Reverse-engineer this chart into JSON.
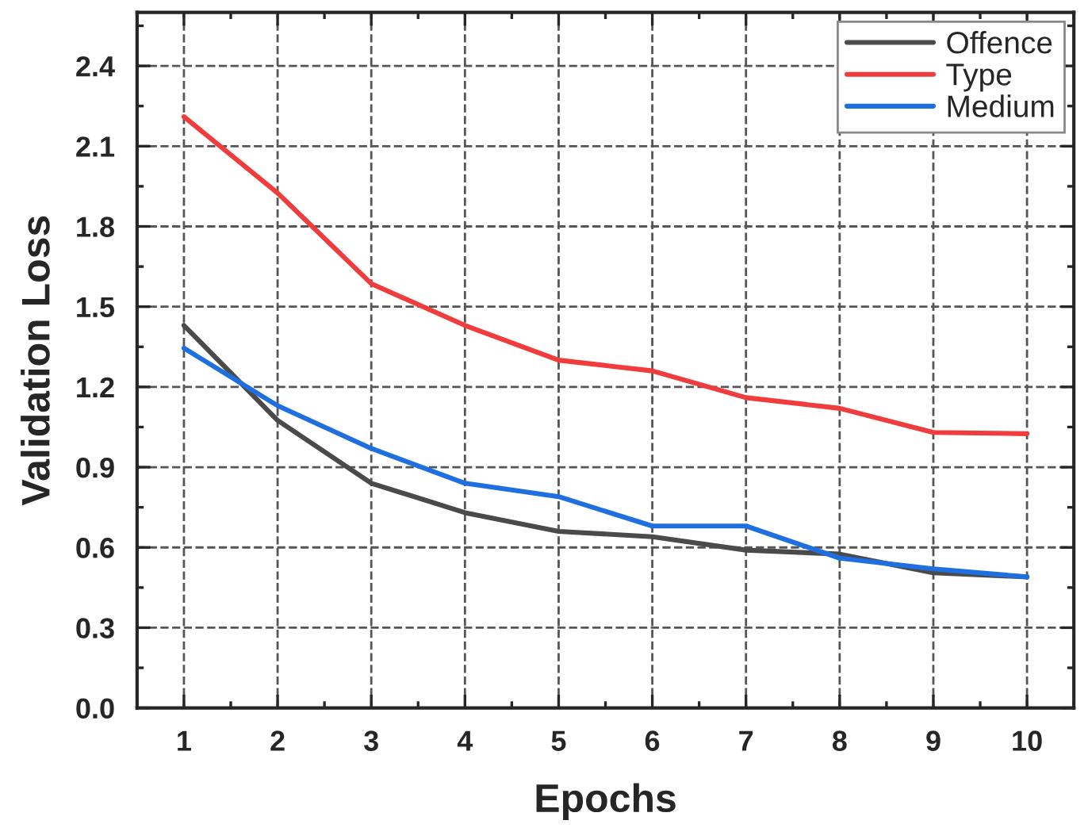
{
  "chart_data": {
    "type": "line",
    "xlabel": "Epochs",
    "ylabel": "Validation Loss",
    "x": [
      1,
      2,
      3,
      4,
      5,
      6,
      7,
      8,
      9,
      10
    ],
    "series": [
      {
        "name": "Offence",
        "color": "#4a4a4a",
        "values": [
          1.43,
          1.075,
          0.84,
          0.73,
          0.66,
          0.64,
          0.59,
          0.575,
          0.505,
          0.49
        ]
      },
      {
        "name": "Type",
        "color": "#f03c3c",
        "values": [
          2.21,
          1.925,
          1.586,
          1.43,
          1.3,
          1.26,
          1.16,
          1.12,
          1.03,
          1.025
        ]
      },
      {
        "name": "Medium",
        "color": "#1f6fe0",
        "values": [
          1.345,
          1.13,
          0.97,
          0.84,
          0.79,
          0.68,
          0.68,
          0.56,
          0.52,
          0.49
        ]
      }
    ],
    "xlim": [
      0.5,
      10.5
    ],
    "xticks": [
      1,
      2,
      3,
      4,
      5,
      6,
      7,
      8,
      9,
      10
    ],
    "ylim": [
      0.0,
      2.6
    ],
    "yticks": [
      {
        "value": 0,
        "label": "0.0"
      },
      0.3,
      0.6,
      0.9,
      1.2,
      1.5,
      1.8,
      2.1,
      2.4
    ],
    "grid": true,
    "legend": "top right",
    "marker": "none",
    "line_style": "solid"
  }
}
